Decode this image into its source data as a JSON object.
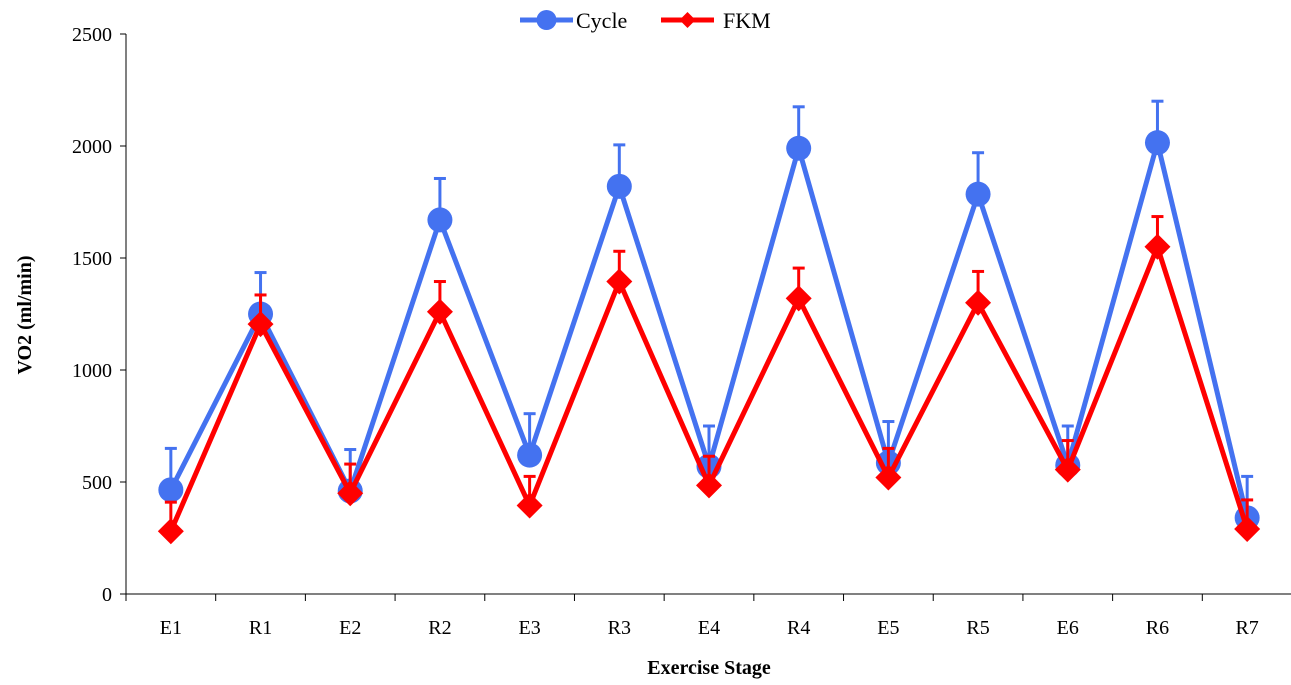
{
  "chart_data": {
    "type": "line",
    "title": "",
    "xlabel": "Exercise Stage",
    "ylabel": "VO2 (ml/min)",
    "categories": [
      "E1",
      "R1",
      "E2",
      "R2",
      "E3",
      "R3",
      "E4",
      "R4",
      "E5",
      "R5",
      "E6",
      "R6",
      "R7"
    ],
    "ylim": [
      0,
      2500
    ],
    "yticks": [
      0,
      500,
      1000,
      1500,
      2000,
      2500
    ],
    "grid": false,
    "legend_position": "top",
    "series": [
      {
        "name": "Cycle",
        "color": "#4472F0",
        "marker": "circle",
        "values": [
          465,
          1250,
          460,
          1670,
          620,
          1820,
          570,
          1990,
          585,
          1785,
          575,
          2015,
          340
        ],
        "error_plus": [
          185,
          185,
          185,
          185,
          185,
          185,
          180,
          185,
          185,
          185,
          175,
          185,
          185
        ]
      },
      {
        "name": "FKM",
        "color": "#FF0000",
        "marker": "diamond",
        "values": [
          280,
          1205,
          450,
          1260,
          395,
          1395,
          485,
          1320,
          520,
          1300,
          555,
          1550,
          290
        ],
        "error_plus": [
          130,
          130,
          130,
          135,
          130,
          135,
          130,
          135,
          130,
          140,
          130,
          135,
          130
        ]
      }
    ]
  }
}
